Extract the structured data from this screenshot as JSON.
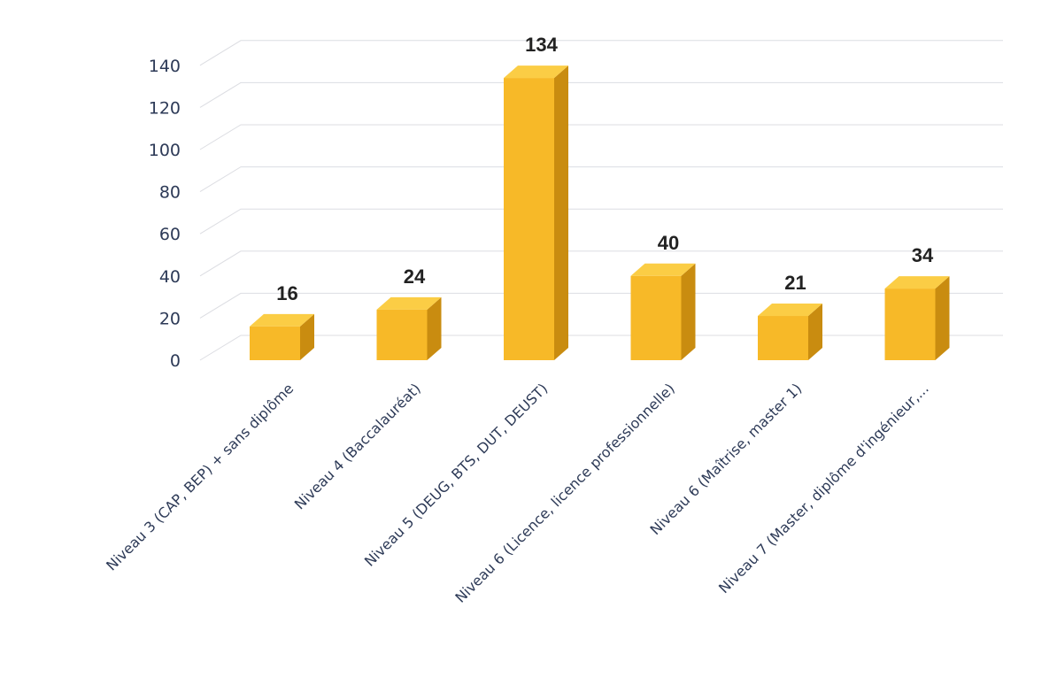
{
  "chart_data": {
    "type": "bar",
    "categories": [
      "Niveau 3 (CAP, BEP) + sans diplôme",
      "Niveau 4 (Baccalauréat)",
      "Niveau 5 (DEUG, BTS, DUT, DEUST)",
      "Niveau 6 (Licence, licence professionnelle)",
      "Niveau 6 (Maîtrise, master 1)",
      "Niveau 7 (Master, diplôme d'ingénieur,..."
    ],
    "values": [
      16,
      24,
      134,
      40,
      21,
      34
    ],
    "data_labels": [
      "16",
      "24",
      "134",
      "40",
      "21",
      "34"
    ],
    "yticks": [
      "0",
      "20",
      "40",
      "60",
      "80",
      "100",
      "120",
      "140"
    ],
    "ylim": [
      0,
      160
    ],
    "title": "",
    "xlabel": "",
    "ylabel": "",
    "grid": true,
    "style": "3d-column",
    "colors": {
      "front": "#f7b928",
      "side": "#c98c10",
      "top": "#fbcd45",
      "grid": "#dcdde2",
      "text": "#2d3a57"
    }
  }
}
